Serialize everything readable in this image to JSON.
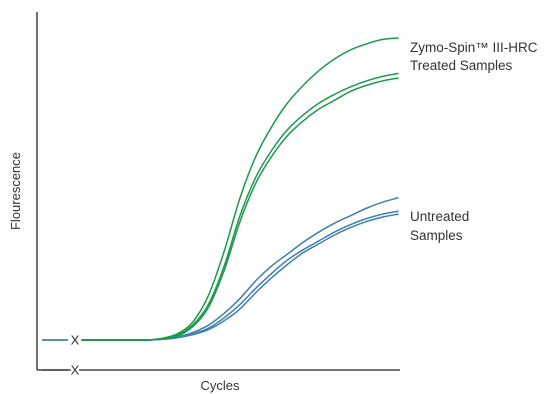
{
  "chart_data": {
    "type": "line",
    "title": "",
    "xlabel": "Cycles",
    "ylabel": "Flourescence",
    "xlim": [
      0,
      40
    ],
    "ylim": [
      0,
      100
    ],
    "grid": false,
    "legend": "none",
    "baseline": 0,
    "baseline_marks": [
      {
        "label": "X",
        "axis": "y"
      },
      {
        "label": "X",
        "axis": "x"
      }
    ],
    "groups": [
      {
        "label_lines": [
          "Zymo-Spin™ III-HRC",
          "Treated Samples"
        ],
        "color": "#1a9a4a",
        "series": [
          {
            "x": [
              0,
              4,
              8,
              10,
              12,
              14,
              16,
              18,
              20,
              22,
              24,
              26,
              28,
              30,
              32,
              34,
              36,
              38,
              40
            ],
            "y": [
              0,
              0,
              0,
              0.5,
              2,
              6,
              15,
              30,
              48,
              62,
              72,
              80,
              86,
              91,
              95,
              98,
              100,
              101.5,
              102
            ]
          },
          {
            "x": [
              0,
              4,
              8,
              10,
              12,
              14,
              16,
              18,
              20,
              22,
              24,
              26,
              28,
              30,
              32,
              34,
              36,
              38,
              40
            ],
            "y": [
              0,
              0,
              0,
              0.4,
              1.5,
              5,
              12,
              25,
              42,
              55,
              64,
              71,
              76,
              80,
              83,
              85.5,
              87.5,
              89,
              90
            ]
          },
          {
            "x": [
              0,
              4,
              8,
              10,
              12,
              14,
              16,
              18,
              20,
              22,
              24,
              26,
              28,
              30,
              32,
              34,
              36,
              38,
              40
            ],
            "y": [
              0,
              0,
              0,
              0.3,
              1.2,
              4.5,
              11,
              23.5,
              40,
              53,
              62,
              69,
              74,
              78,
              81,
              84,
              86,
              87.5,
              88.5
            ]
          }
        ]
      },
      {
        "label_lines": [
          "Untreated",
          "Samples"
        ],
        "color": "#3d7fb0",
        "series": [
          {
            "x": [
              0,
              4,
              8,
              10,
              12,
              14,
              16,
              18,
              20,
              22,
              24,
              26,
              28,
              30,
              32,
              34,
              36,
              38,
              40
            ],
            "y": [
              0,
              0,
              0,
              0.3,
              1,
              2.5,
              5,
              9,
              14,
              20,
              25,
              29,
              33,
              36.5,
              39.5,
              42,
              44.5,
              46.5,
              48
            ]
          },
          {
            "x": [
              0,
              4,
              8,
              10,
              12,
              14,
              16,
              18,
              20,
              22,
              24,
              26,
              28,
              30,
              32,
              34,
              36,
              38,
              40
            ],
            "y": [
              0,
              0,
              0,
              0.2,
              0.8,
              2,
              4,
              7.5,
              12,
              17.5,
              22.5,
              27,
              30.5,
              33.5,
              36.5,
              39,
              41,
              42.5,
              43.5
            ]
          },
          {
            "x": [
              0,
              4,
              8,
              10,
              12,
              14,
              16,
              18,
              20,
              22,
              24,
              26,
              28,
              30,
              32,
              34,
              36,
              38,
              40
            ],
            "y": [
              0,
              0,
              0,
              0.2,
              0.7,
              1.8,
              3.5,
              6.5,
              10.5,
              16,
              21,
              25.5,
              29.5,
              32.5,
              35.5,
              38,
              40,
              41.5,
              42.5
            ]
          }
        ]
      }
    ]
  }
}
